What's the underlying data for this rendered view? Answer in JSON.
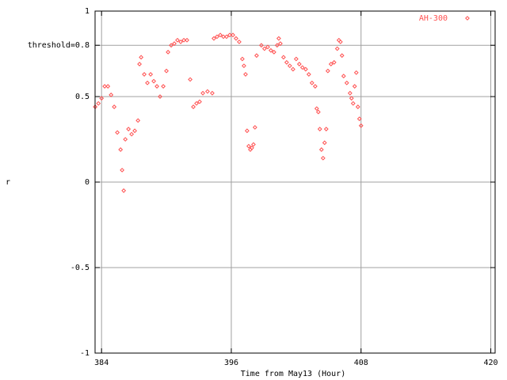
{
  "chart_data": {
    "type": "scatter",
    "xlabel": "Time from May13 (Hour)",
    "ylabel": "r",
    "xlim": [
      383.4,
      420.4
    ],
    "ylim": [
      -1,
      1
    ],
    "xticks": [
      384,
      396,
      408,
      420
    ],
    "yticks": [
      -1,
      -0.5,
      0,
      0.5,
      {
        "value": 0.8,
        "label": "threshold=0.8"
      },
      1
    ],
    "grid": true,
    "legend": "upper right",
    "series": [
      {
        "name": "AH-300",
        "color": "#ff5050",
        "x": [
          383.41,
          383.71,
          384.0,
          384.29,
          384.59,
          384.88,
          385.17,
          385.46,
          385.76,
          385.9,
          386.05,
          386.2,
          386.49,
          386.78,
          387.07,
          387.37,
          387.51,
          387.66,
          387.95,
          388.24,
          388.54,
          388.83,
          389.12,
          389.41,
          389.71,
          390.0,
          390.15,
          390.44,
          390.73,
          391.02,
          391.32,
          391.61,
          391.9,
          392.2,
          392.49,
          392.78,
          393.07,
          393.37,
          393.8,
          394.24,
          394.39,
          394.68,
          394.98,
          395.27,
          395.56,
          395.85,
          396.15,
          396.44,
          396.73,
          397.02,
          397.17,
          397.32,
          397.46,
          397.61,
          397.76,
          397.9,
          398.05,
          398.19,
          398.34,
          398.78,
          399.07,
          399.37,
          399.66,
          399.95,
          400.24,
          400.39,
          400.54,
          400.83,
          401.12,
          401.41,
          401.71,
          402.0,
          402.29,
          402.58,
          402.88,
          403.17,
          403.46,
          403.76,
          403.9,
          404.05,
          404.19,
          404.34,
          404.49,
          404.63,
          404.78,
          404.93,
          405.22,
          405.51,
          405.8,
          405.95,
          406.1,
          406.24,
          406.39,
          406.68,
          406.98,
          407.12,
          407.27,
          407.41,
          407.56,
          407.71,
          407.85,
          408.0
        ],
        "values": [
          0.44,
          0.46,
          0.49,
          0.56,
          0.56,
          0.51,
          0.44,
          0.29,
          0.19,
          0.07,
          -0.05,
          0.25,
          0.31,
          0.28,
          0.3,
          0.36,
          0.69,
          0.73,
          0.63,
          0.58,
          0.63,
          0.59,
          0.56,
          0.5,
          0.56,
          0.65,
          0.76,
          0.8,
          0.81,
          0.83,
          0.82,
          0.83,
          0.83,
          0.6,
          0.44,
          0.46,
          0.47,
          0.52,
          0.53,
          0.52,
          0.84,
          0.85,
          0.86,
          0.85,
          0.85,
          0.86,
          0.86,
          0.84,
          0.82,
          0.72,
          0.68,
          0.63,
          0.3,
          0.21,
          0.19,
          0.2,
          0.22,
          0.32,
          0.74,
          0.8,
          0.78,
          0.79,
          0.77,
          0.76,
          0.8,
          0.84,
          0.81,
          0.73,
          0.7,
          0.68,
          0.66,
          0.72,
          0.69,
          0.67,
          0.66,
          0.63,
          0.58,
          0.56,
          0.43,
          0.41,
          0.31,
          0.19,
          0.14,
          0.23,
          0.31,
          0.65,
          0.69,
          0.7,
          0.78,
          0.83,
          0.82,
          0.74,
          0.62,
          0.58,
          0.52,
          0.49,
          0.46,
          0.56,
          0.64,
          0.44,
          0.37,
          0.33
        ]
      }
    ]
  }
}
